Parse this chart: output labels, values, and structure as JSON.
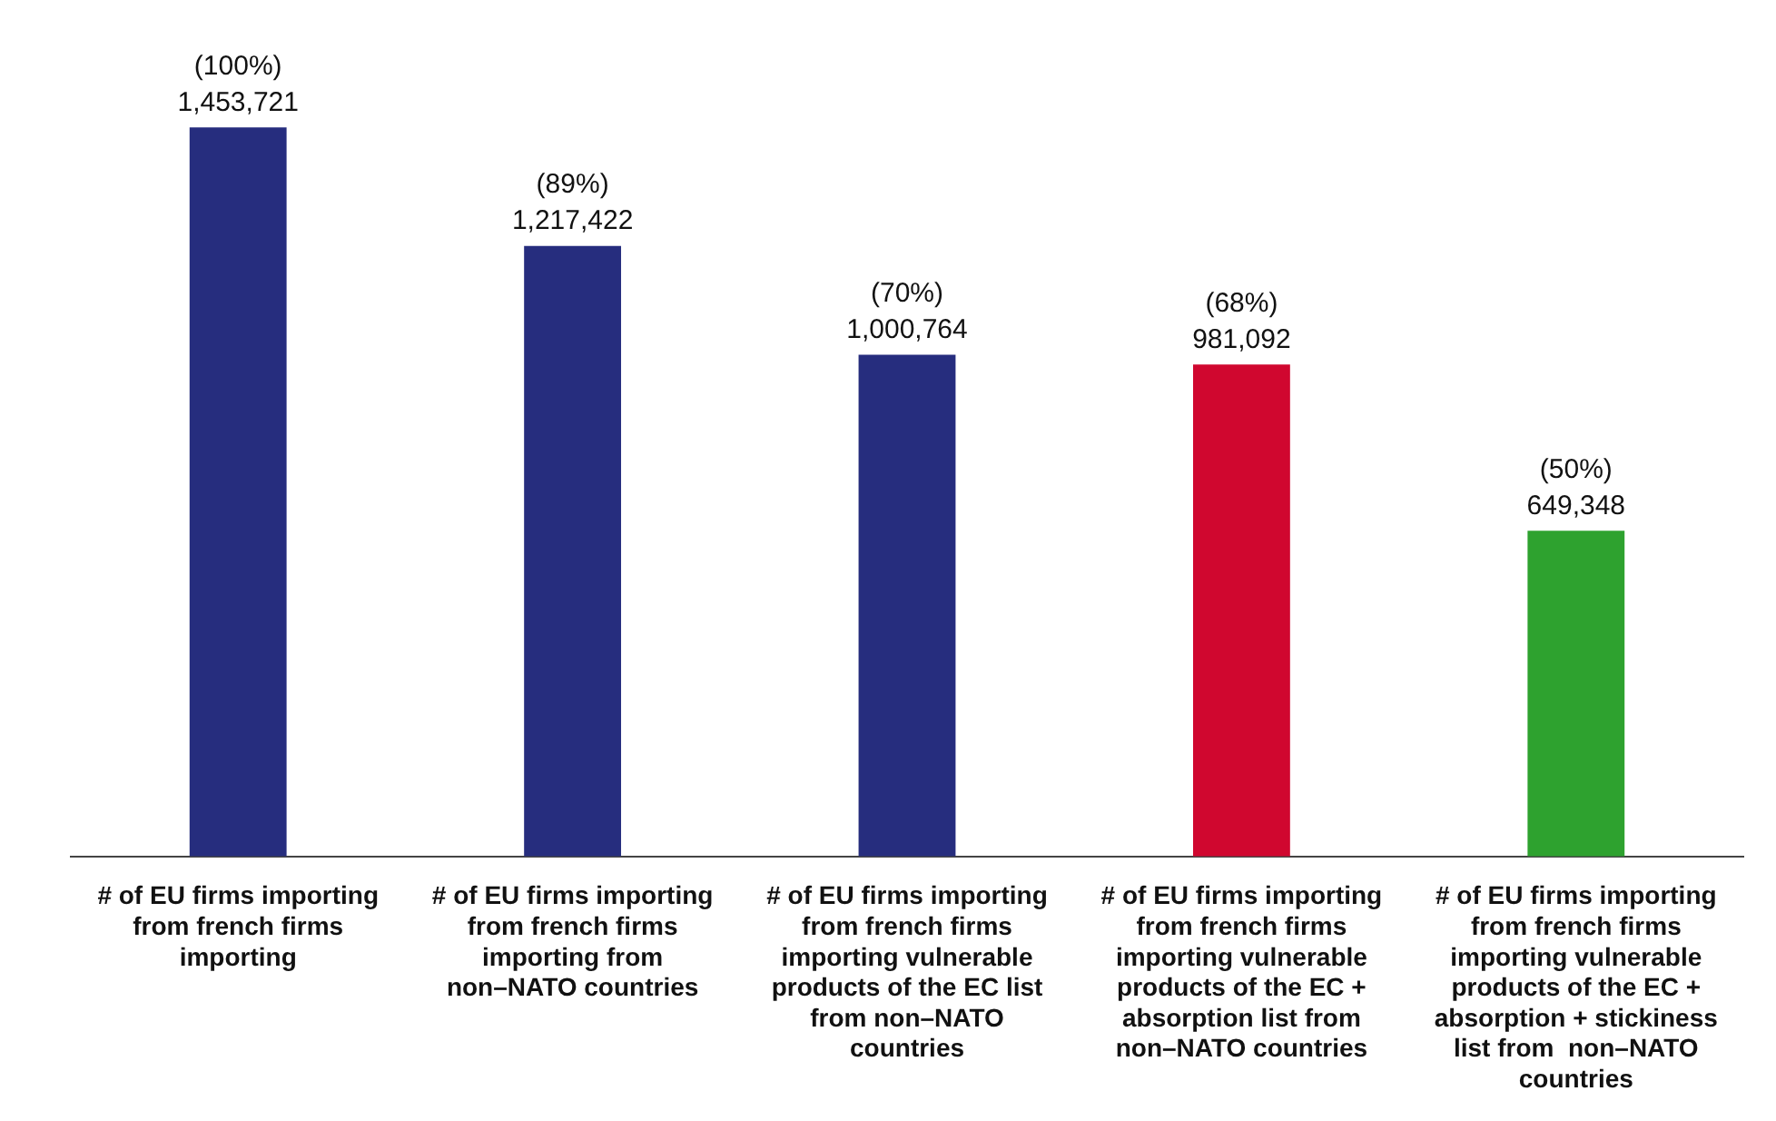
{
  "chart_data": {
    "type": "bar",
    "categories": [
      "# of EU firms importing from french firms importing",
      "# of EU firms importing from french firms importing from non–NATO countries",
      "# of EU firms importing from french firms importing vulnerable products of the EC list from non–NATO countries",
      "# of EU firms importing from french firms importing vulnerable products of the EC + absorption list from non–NATO countries",
      "# of EU firms importing from french firms importing vulnerable products of the EC + absorption + stickiness list from  non–NATO countries"
    ],
    "values": [
      1453721,
      1217422,
      1000764,
      981092,
      649348
    ],
    "colors": [
      "#262d7e",
      "#262d7e",
      "#262d7e",
      "#d0072f",
      "#2ea22f"
    ],
    "value_labels": [
      "(100%)\n1,453,721",
      "(89%)\n1,217,422",
      "(70%)\n1,000,764",
      "(68%)\n981,092",
      "(50%)\n649,348"
    ],
    "legend": false
  }
}
